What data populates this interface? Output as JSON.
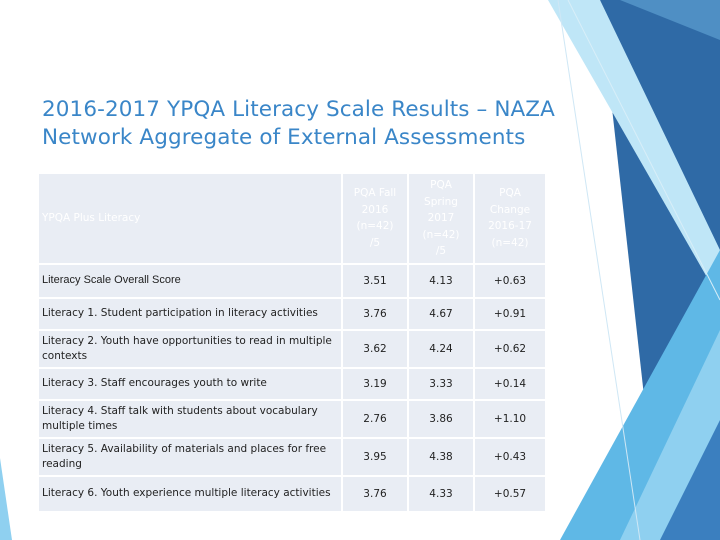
{
  "title": {
    "line1": "2016-2017 YPQA Literacy Scale Results – NAZA",
    "line2": "Network Aggregate of External Assessments"
  },
  "table": {
    "header_label": "YPQA Plus Literacy",
    "columns": [
      [
        "PQA Fall",
        "2016",
        "(n=42)",
        "/5"
      ],
      [
        "PQA Spring",
        "2017",
        "(n=42)",
        "/5"
      ],
      [
        "PQA",
        "Change",
        "2016-17",
        "(n=42)"
      ]
    ],
    "rows": [
      {
        "label": "Literacy Scale Overall Score",
        "fall": "3.51",
        "spring": "4.13",
        "change": "+0.63"
      },
      {
        "label": "Literacy 1. Student participation in literacy activities",
        "fall": "3.76",
        "spring": "4.67",
        "change": "+0.91"
      },
      {
        "label": "Literacy 2. Youth have opportunities to read in multiple contexts",
        "fall": "3.62",
        "spring": "4.24",
        "change": "+0.62"
      },
      {
        "label": "Literacy 3. Staff encourages youth to write",
        "fall": "3.19",
        "spring": "3.33",
        "change": "+0.14"
      },
      {
        "label": "Literacy 4. Staff talk with students about vocabulary multiple times",
        "fall": "2.76",
        "spring": "3.86",
        "change": "+1.10"
      },
      {
        "label": "Literacy 5. Availability of materials and places for free reading",
        "fall": "3.95",
        "spring": "4.38",
        "change": "+0.43"
      },
      {
        "label": "Literacy 6. Youth experience multiple literacy activities",
        "fall": "3.76",
        "spring": "4.33",
        "change": "+0.57"
      }
    ]
  },
  "colors": {
    "title": "#3a86c8",
    "header_fill": "#3e8bd1",
    "cell_fill": "#e9edf4",
    "decor_dark": "#2f6aa6",
    "decor_light": "#8fd0f0"
  }
}
